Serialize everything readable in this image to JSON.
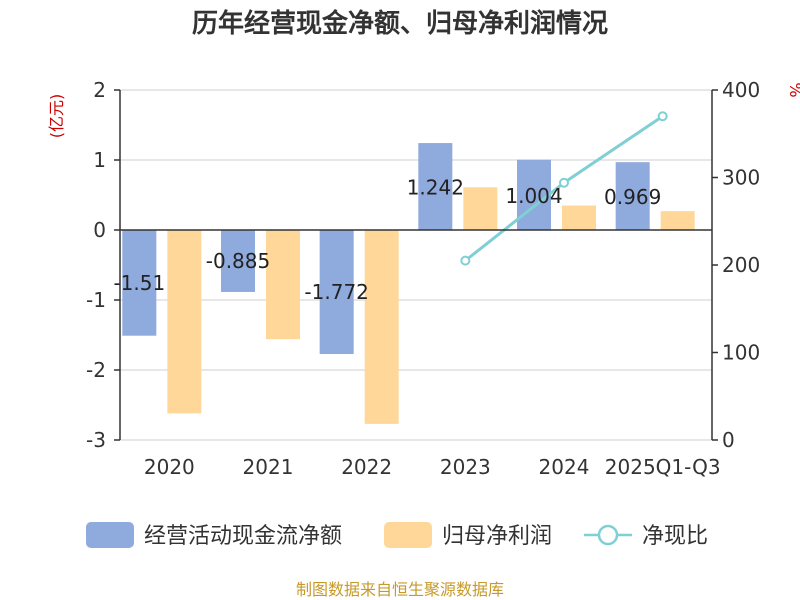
{
  "title": "历年经营现金净额、归母净利润情况",
  "source": "制图数据来自恒生聚源数据库",
  "chart_data": {
    "type": "bar",
    "categories": [
      "2020",
      "2021",
      "2022",
      "2023",
      "2024",
      "2025Q1-Q3"
    ],
    "left_axis": {
      "unit": "(亿元)",
      "ylim": [
        -3,
        2
      ],
      "ticks": [
        "2",
        "1",
        "0",
        "-1",
        "-2",
        "-3"
      ]
    },
    "right_axis": {
      "unit": "%",
      "ylim": [
        0,
        400
      ],
      "ticks": [
        "400",
        "300",
        "200",
        "100",
        "0"
      ]
    },
    "series": [
      {
        "name": "经营活动现金流净额",
        "type": "bar",
        "axis": "left",
        "color": "#8faadc",
        "values": [
          -1.51,
          -0.885,
          -1.772,
          1.242,
          1.004,
          0.969
        ],
        "labels": [
          "-1.51",
          "-0.885",
          "-1.772",
          "1.242",
          "1.004",
          "0.969"
        ]
      },
      {
        "name": "归母净利润",
        "type": "bar",
        "axis": "left",
        "color": "#ffd899",
        "values": [
          -2.62,
          -1.56,
          -2.77,
          0.61,
          0.35,
          0.27
        ]
      },
      {
        "name": "净现比",
        "type": "line",
        "axis": "right",
        "color": "#7fcfd4",
        "values": [
          null,
          null,
          null,
          205,
          294,
          370
        ]
      }
    ]
  }
}
